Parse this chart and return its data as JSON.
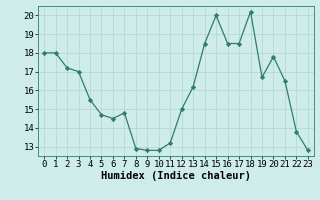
{
  "x": [
    0,
    1,
    2,
    3,
    4,
    5,
    6,
    7,
    8,
    9,
    10,
    11,
    12,
    13,
    14,
    15,
    16,
    17,
    18,
    19,
    20,
    21,
    22,
    23
  ],
  "y": [
    18.0,
    18.0,
    17.2,
    17.0,
    15.5,
    14.7,
    14.5,
    14.8,
    12.9,
    12.8,
    12.8,
    13.2,
    15.0,
    16.2,
    18.5,
    20.0,
    18.5,
    18.5,
    20.2,
    16.7,
    17.8,
    16.5,
    13.8,
    12.8
  ],
  "line_color": "#2e7d6e",
  "marker": "D",
  "marker_size": 2.2,
  "bg_color": "#ceecea",
  "grid_color": "#b8d8d4",
  "xlabel": "Humidex (Indice chaleur)",
  "xlim": [
    -0.5,
    23.5
  ],
  "ylim": [
    12.5,
    20.5
  ],
  "yticks": [
    13,
    14,
    15,
    16,
    17,
    18,
    19,
    20
  ],
  "xticks": [
    0,
    1,
    2,
    3,
    4,
    5,
    6,
    7,
    8,
    9,
    10,
    11,
    12,
    13,
    14,
    15,
    16,
    17,
    18,
    19,
    20,
    21,
    22,
    23
  ],
  "xlabel_fontsize": 7.5,
  "tick_fontsize": 6.5,
  "font_family": "monospace"
}
